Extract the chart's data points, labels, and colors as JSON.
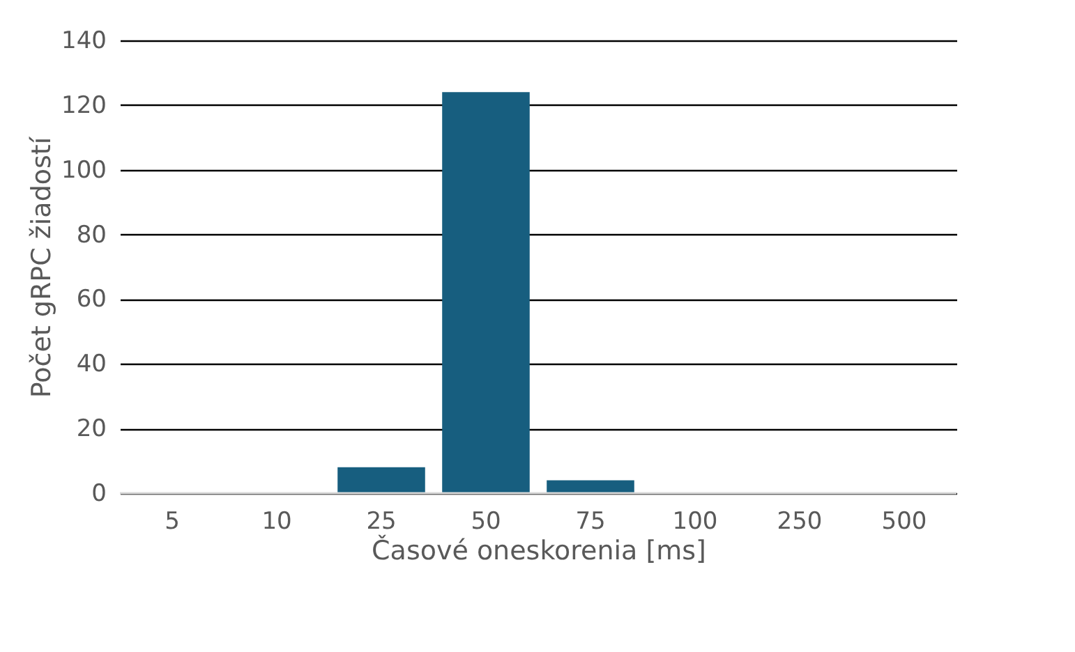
{
  "chart_data": {
    "type": "bar",
    "xlabel": "Časové oneskorenia [ms]",
    "ylabel": "Počet gRPC žiadostí",
    "categories": [
      "5",
      "10",
      "25",
      "50",
      "75",
      "100",
      "250",
      "500"
    ],
    "values": [
      0,
      0,
      8,
      124,
      4,
      0,
      0,
      0
    ],
    "color": "#175e7f",
    "ylim": [
      0,
      140
    ],
    "yticks": [
      0,
      20,
      40,
      60,
      80,
      100,
      120,
      140
    ],
    "grid": "y"
  }
}
